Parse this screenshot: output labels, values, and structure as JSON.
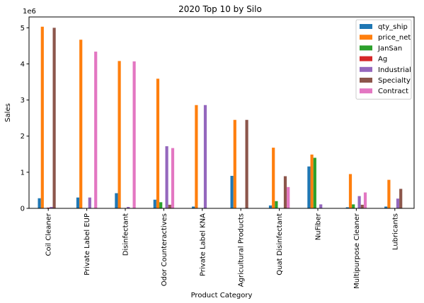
{
  "chart_data": {
    "type": "bar",
    "title": "2020 Top 10 by Silo",
    "xlabel": "Product Category",
    "ylabel": "Sales",
    "y_scale_label": "1e6",
    "ylim": [
      0,
      5.3
    ],
    "yticks": [
      0,
      1,
      2,
      3,
      4,
      5
    ],
    "grid": false,
    "legend_position": "top-right",
    "categories": [
      "Coil Cleaner",
      "Private Label EUP",
      "Disinfectant",
      "Odor Counteractives",
      "Private Label KNA",
      "Agricultural Products",
      "Quat Disinfectant",
      "NuFiber",
      "Multipurpose Cleaner",
      "Lubricants"
    ],
    "series": [
      {
        "name": "qty_ship",
        "color": "#1f77b4",
        "values": [
          0.28,
          0.3,
          0.42,
          0.24,
          0.05,
          0.9,
          0.08,
          1.16,
          0.03,
          0.05
        ]
      },
      {
        "name": "price_net",
        "color": "#ff7f0e",
        "values": [
          5.03,
          4.67,
          4.08,
          3.59,
          2.86,
          2.45,
          1.68,
          1.49,
          0.95,
          0.79
        ]
      },
      {
        "name": "JanSan",
        "color": "#2ca02c",
        "values": [
          0.0,
          0.0,
          0.0,
          0.17,
          0.0,
          0.0,
          0.2,
          1.4,
          0.11,
          0.0
        ]
      },
      {
        "name": "Ag",
        "color": "#d62728",
        "values": [
          0.02,
          0.0,
          0.01,
          0.0,
          0.0,
          0.0,
          0.0,
          0.0,
          0.0,
          0.0
        ]
      },
      {
        "name": "Industrial",
        "color": "#9467bd",
        "values": [
          0.04,
          0.3,
          0.04,
          1.72,
          2.86,
          0.0,
          0.0,
          0.11,
          0.34,
          0.27
        ]
      },
      {
        "name": "Specialty",
        "color": "#8c564b",
        "values": [
          5.0,
          0.0,
          0.0,
          0.1,
          0.0,
          2.45,
          0.89,
          0.0,
          0.1,
          0.54
        ]
      },
      {
        "name": "Contract",
        "color": "#e377c2",
        "values": [
          0.0,
          4.34,
          4.07,
          1.67,
          0.0,
          0.0,
          0.59,
          0.0,
          0.44,
          0.0
        ]
      }
    ]
  }
}
